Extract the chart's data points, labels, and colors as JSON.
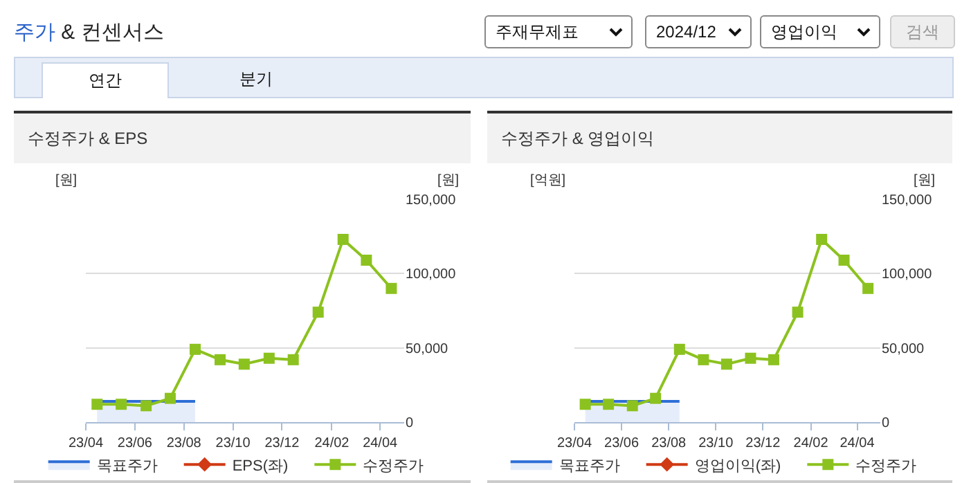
{
  "chart_data": [
    {
      "type": "other",
      "title": "주가 & 컨센서스",
      "annotations": [
        "주재무제표",
        "2024/12",
        "영업이익",
        "검색",
        "연간",
        "분기"
      ]
    },
    {
      "type": "line",
      "title": "수정주가 & EPS",
      "ylabel": "[원]",
      "y2label": "[원]",
      "x": [
        "2023-04-15",
        "2023-05-15",
        "2023-06-15",
        "2023-07-15",
        "2023-08-15",
        "2023-09-15",
        "2023-10-15",
        "2023-11-15",
        "2023-12-15",
        "2024-01-15",
        "2024-02-15",
        "2024-03-15",
        "2024-04-15"
      ],
      "xlim": [
        "2023-04-01",
        "2024-05-01"
      ],
      "xticks": [
        {
          "value": "2023-04",
          "label": "23/04"
        },
        {
          "value": "2023-06",
          "label": "23/06"
        },
        {
          "value": "2023-08",
          "label": "23/08"
        },
        {
          "value": "2023-10",
          "label": "23/10"
        },
        {
          "value": "2023-12",
          "label": "23/12"
        },
        {
          "value": "2024-02",
          "label": "24/02"
        },
        {
          "value": "2024-04",
          "label": "24/04"
        }
      ],
      "y2lim": [
        0,
        150000
      ],
      "y2ticks": [
        0,
        {
          "value": 50000,
          "label": "50,000"
        },
        {
          "value": 100000,
          "label": "100,000"
        },
        {
          "value": 150000,
          "label": "150,000"
        }
      ],
      "grid": "y",
      "legend": "bottom",
      "series": [
        {
          "name": "목표주가",
          "type": "area",
          "axis": "y2",
          "color": "#2f6fd6",
          "marker": "none",
          "values": [
            14000,
            14000,
            14000,
            14000,
            14000,
            null,
            null,
            null,
            null,
            null,
            null,
            null,
            null
          ]
        },
        {
          "name": "EPS(좌)",
          "type": "line",
          "color": "#d03a14",
          "marker": "diamond",
          "values": [
            null,
            null,
            null,
            null,
            null,
            null,
            null,
            null,
            null,
            null,
            null,
            null,
            null
          ]
        },
        {
          "name": "수정주가",
          "type": "line",
          "axis": "y2",
          "color": "#8cc21f",
          "marker": "square",
          "values": [
            12000,
            12000,
            11000,
            16000,
            49000,
            42000,
            39000,
            43000,
            42000,
            74000,
            123000,
            109000,
            90000
          ]
        }
      ]
    },
    {
      "type": "line",
      "title": "수정주가 & 영업이익",
      "ylabel": "[억원]",
      "y2label": "[원]",
      "x": [
        "2023-04-15",
        "2023-05-15",
        "2023-06-15",
        "2023-07-15",
        "2023-08-15",
        "2023-09-15",
        "2023-10-15",
        "2023-11-15",
        "2023-12-15",
        "2024-01-15",
        "2024-02-15",
        "2024-03-15",
        "2024-04-15"
      ],
      "xlim": [
        "2023-04-01",
        "2024-05-01"
      ],
      "xticks": [
        {
          "value": "2023-04",
          "label": "23/04"
        },
        {
          "value": "2023-06",
          "label": "23/06"
        },
        {
          "value": "2023-08",
          "label": "23/08"
        },
        {
          "value": "2023-10",
          "label": "23/10"
        },
        {
          "value": "2023-12",
          "label": "23/12"
        },
        {
          "value": "2024-02",
          "label": "24/02"
        },
        {
          "value": "2024-04",
          "label": "24/04"
        }
      ],
      "y2lim": [
        0,
        150000
      ],
      "y2ticks": [
        0,
        {
          "value": 50000,
          "label": "50,000"
        },
        {
          "value": 100000,
          "label": "100,000"
        },
        {
          "value": 150000,
          "label": "150,000"
        }
      ],
      "grid": "y",
      "legend": "bottom",
      "series": [
        {
          "name": "목표주가",
          "type": "area",
          "axis": "y2",
          "color": "#2f6fd6",
          "marker": "none",
          "values": [
            14000,
            14000,
            14000,
            14000,
            14000,
            null,
            null,
            null,
            null,
            null,
            null,
            null,
            null
          ]
        },
        {
          "name": "영업이익(좌)",
          "type": "line",
          "color": "#d03a14",
          "marker": "diamond",
          "values": [
            null,
            null,
            null,
            null,
            null,
            null,
            null,
            null,
            null,
            null,
            null,
            null,
            null
          ]
        },
        {
          "name": "수정주가",
          "type": "line",
          "axis": "y2",
          "color": "#8cc21f",
          "marker": "square",
          "values": [
            12000,
            12000,
            11000,
            16000,
            49000,
            42000,
            39000,
            43000,
            42000,
            74000,
            123000,
            109000,
            90000
          ]
        }
      ]
    }
  ]
}
